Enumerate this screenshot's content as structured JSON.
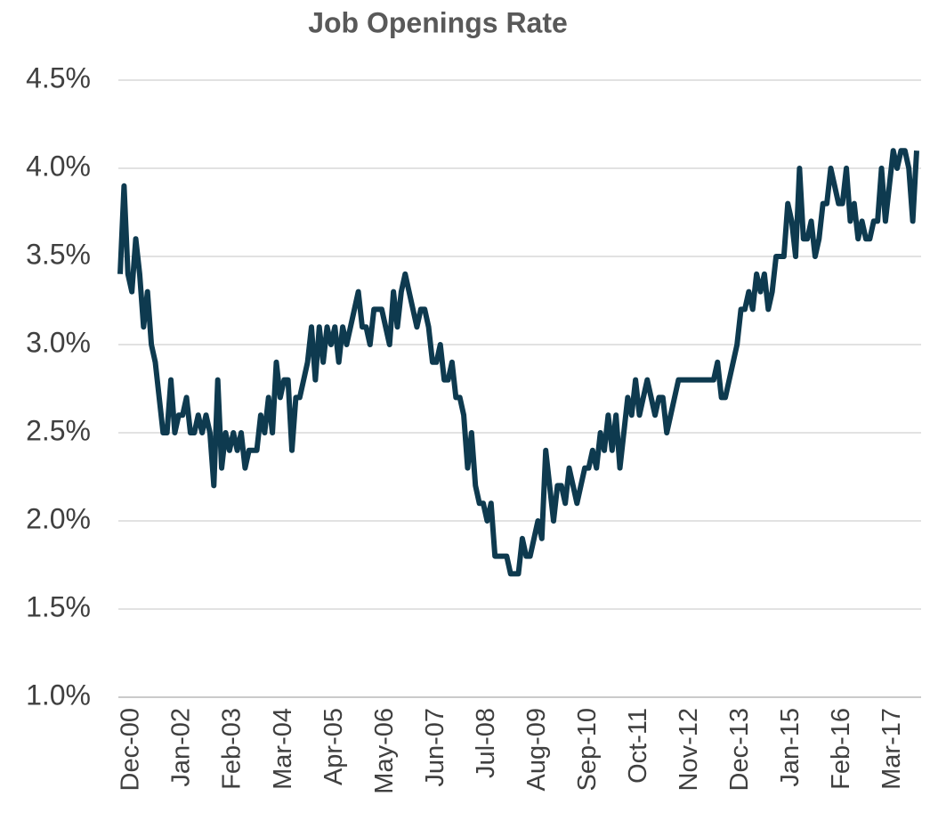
{
  "chart_data": {
    "type": "line",
    "title": "Job Openings Rate",
    "categories": [
      "Dec-00",
      null,
      null,
      null,
      null,
      null,
      null,
      null,
      null,
      null,
      null,
      null,
      null,
      "Jan-02",
      null,
      null,
      null,
      null,
      null,
      null,
      null,
      null,
      null,
      null,
      null,
      null,
      "Feb-03",
      null,
      null,
      null,
      null,
      null,
      null,
      null,
      null,
      null,
      null,
      null,
      null,
      "Mar-04",
      null,
      null,
      null,
      null,
      null,
      null,
      null,
      null,
      null,
      null,
      null,
      null,
      "Apr-05",
      null,
      null,
      null,
      null,
      null,
      null,
      null,
      null,
      null,
      null,
      null,
      null,
      "May-06",
      null,
      null,
      null,
      null,
      null,
      null,
      null,
      null,
      null,
      null,
      null,
      null,
      "Jun-07",
      null,
      null,
      null,
      null,
      null,
      null,
      null,
      null,
      null,
      null,
      null,
      null,
      "Jul-08",
      null,
      null,
      null,
      null,
      null,
      null,
      null,
      null,
      null,
      null,
      null,
      null,
      "Aug-09",
      null,
      null,
      null,
      null,
      null,
      null,
      null,
      null,
      null,
      null,
      null,
      null,
      "Sep-10",
      null,
      null,
      null,
      null,
      null,
      null,
      null,
      null,
      null,
      null,
      null,
      null,
      "Oct-11",
      null,
      null,
      null,
      null,
      null,
      null,
      null,
      null,
      null,
      null,
      null,
      null,
      "Nov-12",
      null,
      null,
      null,
      null,
      null,
      null,
      null,
      null,
      null,
      null,
      null,
      null,
      "Dec-13",
      null,
      null,
      null,
      null,
      null,
      null,
      null,
      null,
      null,
      null,
      null,
      null,
      "Jan-15",
      null,
      null,
      null,
      null,
      null,
      null,
      null,
      null,
      null,
      null,
      null,
      null,
      "Feb-16",
      null,
      null,
      null,
      null,
      null,
      null,
      null,
      null,
      null,
      null,
      null,
      null,
      "Mar-17",
      null,
      null,
      null,
      null,
      null,
      null,
      null,
      null,
      null
    ],
    "values": [
      3.4,
      3.9,
      3.4,
      3.3,
      3.6,
      3.4,
      3.1,
      3.3,
      3.0,
      2.9,
      2.7,
      2.5,
      2.5,
      2.8,
      2.5,
      2.6,
      2.6,
      2.7,
      2.5,
      2.5,
      2.6,
      2.5,
      2.6,
      2.5,
      2.2,
      2.8,
      2.3,
      2.5,
      2.4,
      2.5,
      2.4,
      2.5,
      2.3,
      2.4,
      2.4,
      2.4,
      2.6,
      2.5,
      2.7,
      2.5,
      2.9,
      2.7,
      2.8,
      2.8,
      2.4,
      2.7,
      2.7,
      2.8,
      2.9,
      3.1,
      2.8,
      3.1,
      2.9,
      3.1,
      3.0,
      3.1,
      2.9,
      3.1,
      3.0,
      3.1,
      3.2,
      3.3,
      3.1,
      3.1,
      3.0,
      3.2,
      3.2,
      3.2,
      3.1,
      3.0,
      3.3,
      3.1,
      3.3,
      3.4,
      3.3,
      3.2,
      3.1,
      3.2,
      3.2,
      3.1,
      2.9,
      2.9,
      3.0,
      2.8,
      2.8,
      2.9,
      2.7,
      2.7,
      2.6,
      2.3,
      2.5,
      2.2,
      2.1,
      2.1,
      2.0,
      2.1,
      1.8,
      1.8,
      1.8,
      1.8,
      1.7,
      1.7,
      1.7,
      1.9,
      1.8,
      1.8,
      1.9,
      2.0,
      1.9,
      2.4,
      2.2,
      2.0,
      2.2,
      2.2,
      2.1,
      2.3,
      2.2,
      2.1,
      2.2,
      2.3,
      2.3,
      2.4,
      2.3,
      2.5,
      2.4,
      2.6,
      2.4,
      2.6,
      2.3,
      2.5,
      2.7,
      2.6,
      2.8,
      2.6,
      2.7,
      2.8,
      2.7,
      2.6,
      2.7,
      2.7,
      2.5,
      2.6,
      2.7,
      2.8,
      2.8,
      2.8,
      2.8,
      2.8,
      2.8,
      2.8,
      2.8,
      2.8,
      2.8,
      2.9,
      2.7,
      2.7,
      2.8,
      2.9,
      3.0,
      3.2,
      3.2,
      3.3,
      3.2,
      3.4,
      3.3,
      3.4,
      3.2,
      3.3,
      3.5,
      3.5,
      3.5,
      3.8,
      3.7,
      3.5,
      4.0,
      3.6,
      3.6,
      3.7,
      3.5,
      3.6,
      3.8,
      3.8,
      4.0,
      3.9,
      3.8,
      3.8,
      4.0,
      3.7,
      3.8,
      3.6,
      3.7,
      3.6,
      3.6,
      3.7,
      3.7,
      4.0,
      3.7,
      3.9,
      4.1,
      4.0,
      4.1,
      4.1,
      4.0,
      3.7,
      4.1
    ],
    "color": "#0e3a4f",
    "ylim": [
      1.0,
      4.5
    ],
    "yticks": [
      {
        "value": 1.0,
        "label": "1.0%"
      },
      {
        "value": 1.5,
        "label": "1.5%"
      },
      {
        "value": 2.0,
        "label": "2.0%"
      },
      {
        "value": 2.5,
        "label": "2.5%"
      },
      {
        "value": 3.0,
        "label": "3.0%"
      },
      {
        "value": 3.5,
        "label": "3.5%"
      },
      {
        "value": 4.0,
        "label": "4.0%"
      },
      {
        "value": 4.5,
        "label": "4.5%"
      }
    ],
    "grid": true
  }
}
